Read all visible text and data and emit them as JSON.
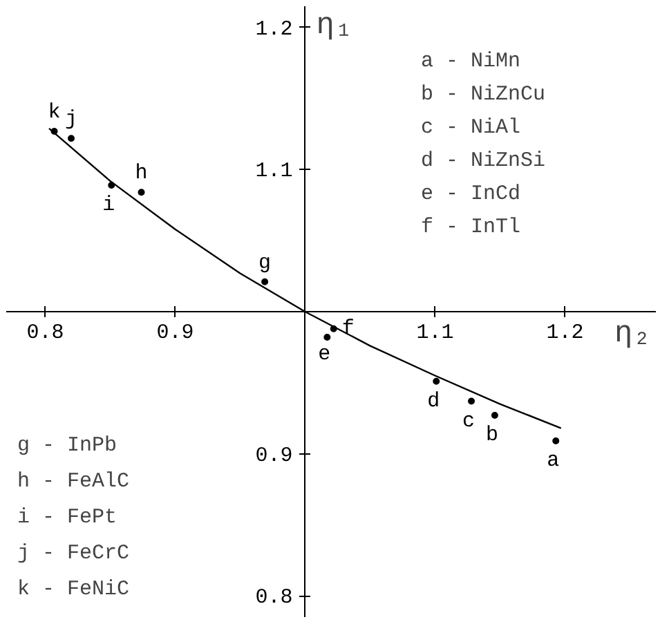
{
  "chart_data": {
    "type": "scatter",
    "xlabel": "η₂",
    "ylabel": "η₁",
    "xlim": [
      0.77,
      1.27
    ],
    "ylim": [
      0.785,
      1.215
    ],
    "xticks": [
      0.8,
      0.9,
      {
        "value": 1.0,
        "label": null
      },
      1.1,
      1.2
    ],
    "yticks": [
      0.8,
      0.9,
      {
        "value": 1.0,
        "label": null
      },
      1.1,
      1.2
    ],
    "grid": false,
    "series": [
      {
        "marker": "circle",
        "color": "#000000",
        "x": [
          1.193,
          1.146,
          1.128,
          1.101,
          1.017,
          1.022,
          0.969,
          0.874,
          0.851,
          0.82,
          0.807
        ],
        "values": [
          0.909,
          0.927,
          0.937,
          0.951,
          0.982,
          0.988,
          1.021,
          1.084,
          1.089,
          1.122,
          1.127
        ]
      },
      {
        "type": "line",
        "color": "#000000",
        "line_style": "solid",
        "x": [
          0.803,
          0.85,
          0.9,
          0.95,
          1.0,
          1.05,
          1.1,
          1.15,
          1.197
        ],
        "values": [
          1.129,
          1.092,
          1.058,
          1.027,
          1.0,
          0.976,
          0.955,
          0.935,
          0.918
        ]
      }
    ],
    "annotations": [
      {
        "text": "a",
        "x": 1.193,
        "y": 0.909
      },
      {
        "text": "b",
        "x": 1.146,
        "y": 0.927
      },
      {
        "text": "c",
        "x": 1.128,
        "y": 0.937
      },
      {
        "text": "d",
        "x": 1.101,
        "y": 0.951
      },
      {
        "text": "e",
        "x": 1.017,
        "y": 0.982
      },
      {
        "text": "f",
        "x": 1.022,
        "y": 0.988
      },
      {
        "text": "g",
        "x": 0.969,
        "y": 1.021
      },
      {
        "text": "h",
        "x": 0.874,
        "y": 1.084
      },
      {
        "text": "i",
        "x": 0.851,
        "y": 1.089
      },
      {
        "text": "j",
        "x": 0.82,
        "y": 1.122
      },
      {
        "text": "k",
        "x": 0.807,
        "y": 1.127
      },
      "a - NiMn",
      "b - NiZnCu",
      "c - NiAl",
      "d - NiZnSi",
      "e - InCd",
      "f - InTl",
      "g - InPb",
      "h - FeAlC",
      "i - FePt",
      "j - FeCrC",
      "k - FeNiC"
    ]
  }
}
